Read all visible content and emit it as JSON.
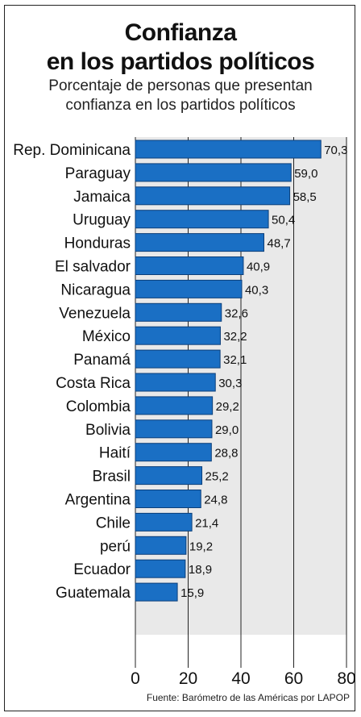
{
  "header": {
    "title_line1": "Confianza",
    "title_line2": "en los partidos políticos",
    "subtitle_line1": "Porcentaje de personas que presentan",
    "subtitle_line2": "confianza en los partidos políticos"
  },
  "footer": {
    "source": "Fuente: Barómetro de las Américas por LAPOP"
  },
  "colors": {
    "bar": "#1a6fc4",
    "bar_border": "#0c3f7a",
    "plot_bg": "#e9e9e9",
    "grid": "#222222"
  },
  "chart_data": {
    "type": "bar",
    "orientation": "horizontal",
    "categories": [
      "Rep. Dominicana",
      "Paraguay",
      "Jamaica",
      "Uruguay",
      "Honduras",
      "El salvador",
      "Nicaragua",
      "Venezuela",
      "México",
      "Panamá",
      "Costa Rica",
      "Colombia",
      "Bolivia",
      "Haití",
      "Brasil",
      "Argentina",
      "Chile",
      "perú",
      "Ecuador",
      "Guatemala"
    ],
    "values": [
      70.3,
      59.0,
      58.5,
      50.4,
      48.7,
      40.9,
      40.3,
      32.6,
      32.2,
      32.1,
      30.3,
      29.2,
      29.0,
      28.8,
      25.2,
      24.8,
      21.4,
      19.2,
      18.9,
      15.9
    ],
    "value_labels": [
      "70,3",
      "59,0",
      "58,5",
      "50,4",
      "48,7",
      "40,9",
      "40,3",
      "32,6",
      "32,2",
      "32,1",
      "30,3",
      "29,2",
      "29,0",
      "28,8",
      "25,2",
      "24,8",
      "21,4",
      "19,2",
      "18,9",
      "15,9"
    ],
    "xlim": [
      0,
      80
    ],
    "xticks": [
      0,
      20,
      40,
      60,
      80
    ],
    "xtick_labels": [
      "0",
      "20",
      "40",
      "60",
      "80"
    ],
    "grid": true
  }
}
